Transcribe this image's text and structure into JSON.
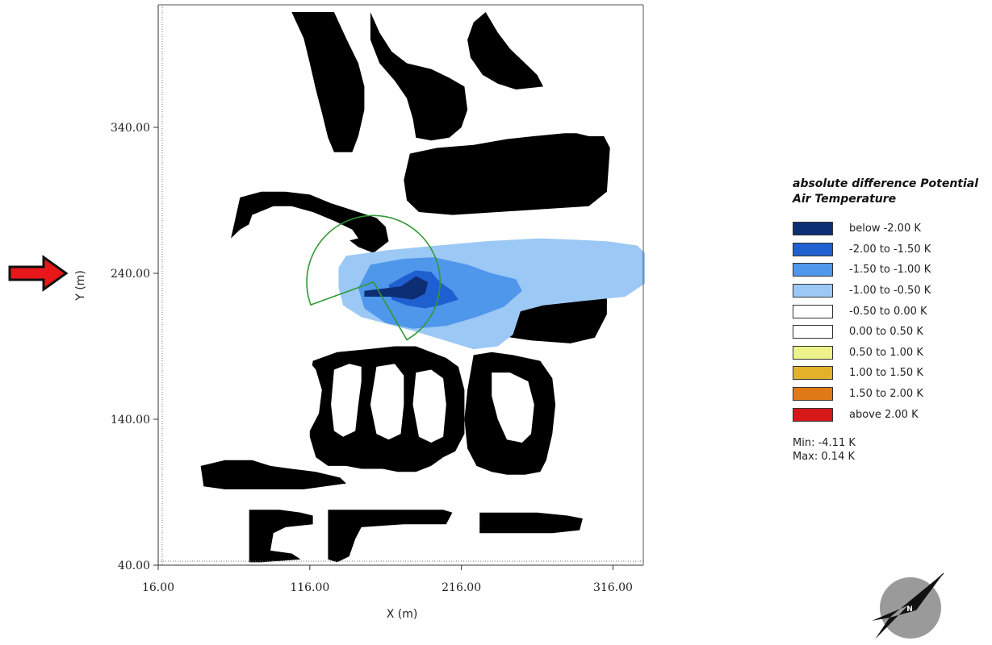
{
  "chart_data": {
    "type": "heatmap",
    "title": "",
    "xlabel": "X (m)",
    "ylabel": "Y (m)",
    "xlim": [
      16,
      336
    ],
    "ylim": [
      40,
      424
    ],
    "x_ticks": [
      "16.00",
      "116.00",
      "216.00",
      "316.00"
    ],
    "y_ticks": [
      "40.00",
      "140.00",
      "240.00",
      "340.00"
    ],
    "x_tick_values": [
      16,
      116,
      216,
      316
    ],
    "y_tick_values": [
      40,
      140,
      240,
      340
    ],
    "legend_title": "absolute difference Potential Air Temperature",
    "legend": [
      {
        "label": "below -2.00 K",
        "color": "#0d2e72"
      },
      {
        "label": "-2.00 to -1.50 K",
        "color": "#1f5fd0"
      },
      {
        "label": "-1.50 to -1.00 K",
        "color": "#4f97eb"
      },
      {
        "label": "-1.00 to -0.50 K",
        "color": "#9cc8f6"
      },
      {
        "label": "-0.50 to 0.00 K",
        "color": "#ffffff"
      },
      {
        "label": "0.00 to 0.50 K",
        "color": "#ffffff"
      },
      {
        "label": "0.50 to 1.00 K",
        "color": "#eef28a"
      },
      {
        "label": "1.00 to 1.50 K",
        "color": "#e3b22a"
      },
      {
        "label": "1.50 to 2.00 K",
        "color": "#e07a18"
      },
      {
        "label": "above 2.00 K",
        "color": "#d81818"
      }
    ],
    "min_label": "Min: -4.11 K",
    "max_label": "Max: 0.14 K",
    "min": -4.11,
    "max": 0.14,
    "cooling_zones": [
      {
        "class": "-1.00 to -0.50 K",
        "polygon": [
          [
            140,
            252
          ],
          [
            168,
            256
          ],
          [
            200,
            259
          ],
          [
            232,
            262
          ],
          [
            268,
            264
          ],
          [
            292,
            263
          ],
          [
            312,
            262
          ],
          [
            332,
            259
          ],
          [
            337,
            254
          ],
          [
            337,
            233
          ],
          [
            324,
            224
          ],
          [
            296,
            221
          ],
          [
            270,
            218
          ],
          [
            255,
            214
          ],
          [
            250,
            198
          ],
          [
            240,
            190
          ],
          [
            224,
            188
          ],
          [
            205,
            194
          ],
          [
            186,
            200
          ],
          [
            172,
            204
          ],
          [
            150,
            210
          ],
          [
            138,
            218
          ],
          [
            135,
            230
          ],
          [
            135,
            244
          ]
        ]
      },
      {
        "class": "-1.50 to -1.00 K",
        "polygon": [
          [
            156,
            246
          ],
          [
            178,
            250
          ],
          [
            198,
            251
          ],
          [
            220,
            246
          ],
          [
            236,
            240
          ],
          [
            252,
            236
          ],
          [
            256,
            228
          ],
          [
            244,
            217
          ],
          [
            226,
            210
          ],
          [
            206,
            204
          ],
          [
            184,
            202
          ],
          [
            166,
            206
          ],
          [
            152,
            216
          ],
          [
            148,
            230
          ]
        ]
      },
      {
        "class": "-2.00 to -1.50 K",
        "polygon": [
          [
            168,
            232
          ],
          [
            178,
            238
          ],
          [
            186,
            242
          ],
          [
            196,
            241
          ],
          [
            202,
            234
          ],
          [
            210,
            228
          ],
          [
            214,
            222
          ],
          [
            202,
            218
          ],
          [
            192,
            216
          ],
          [
            180,
            218
          ],
          [
            170,
            222
          ]
        ]
      },
      {
        "class": "below -2.00 K",
        "polygon": [
          [
            152,
            228
          ],
          [
            176,
            231
          ],
          [
            186,
            238
          ],
          [
            194,
            234
          ],
          [
            192,
            226
          ],
          [
            184,
            222
          ],
          [
            170,
            224
          ],
          [
            152,
            224
          ]
        ]
      }
    ],
    "buildings": [
      [
        [
          104,
          419
        ],
        [
          112,
          401
        ],
        [
          116,
          384
        ],
        [
          120,
          366
        ],
        [
          124,
          350
        ],
        [
          128,
          333
        ],
        [
          132,
          323
        ],
        [
          144,
          323
        ],
        [
          148,
          334
        ],
        [
          152,
          352
        ],
        [
          152,
          368
        ],
        [
          148,
          384
        ],
        [
          140,
          401
        ],
        [
          132,
          419
        ]
      ],
      [
        [
          156,
          419
        ],
        [
          162,
          405
        ],
        [
          170,
          392
        ],
        [
          180,
          384
        ],
        [
          196,
          380
        ],
        [
          208,
          374
        ],
        [
          218,
          368
        ],
        [
          220,
          352
        ],
        [
          216,
          340
        ],
        [
          208,
          333
        ],
        [
          196,
          331
        ],
        [
          186,
          333
        ],
        [
          184,
          346
        ],
        [
          180,
          360
        ],
        [
          172,
          372
        ],
        [
          162,
          384
        ],
        [
          156,
          400
        ]
      ],
      [
        [
          232,
          419
        ],
        [
          240,
          405
        ],
        [
          248,
          394
        ],
        [
          258,
          384
        ],
        [
          266,
          376
        ],
        [
          270,
          368
        ],
        [
          252,
          366
        ],
        [
          240,
          370
        ],
        [
          230,
          376
        ],
        [
          222,
          388
        ],
        [
          220,
          400
        ],
        [
          224,
          412
        ]
      ],
      [
        [
          182,
          322
        ],
        [
          200,
          326
        ],
        [
          224,
          328
        ],
        [
          246,
          332
        ],
        [
          264,
          334
        ],
        [
          284,
          336
        ],
        [
          292,
          336
        ],
        [
          300,
          334
        ],
        [
          310,
          334
        ],
        [
          314,
          326
        ],
        [
          312,
          296
        ],
        [
          300,
          286
        ],
        [
          270,
          284
        ],
        [
          240,
          282
        ],
        [
          210,
          280
        ],
        [
          188,
          282
        ],
        [
          180,
          290
        ],
        [
          178,
          304
        ]
      ],
      [
        [
          70,
          292
        ],
        [
          84,
          296
        ],
        [
          100,
          296
        ],
        [
          116,
          294
        ],
        [
          130,
          288
        ],
        [
          148,
          282
        ],
        [
          160,
          278
        ],
        [
          166,
          272
        ],
        [
          168,
          262
        ],
        [
          158,
          254
        ],
        [
          148,
          258
        ],
        [
          138,
          266
        ],
        [
          128,
          270
        ],
        [
          116,
          274
        ],
        [
          104,
          278
        ],
        [
          92,
          280
        ],
        [
          80,
          276
        ],
        [
          70,
          270
        ],
        [
          64,
          264
        ]
      ],
      [
        [
          222,
          238
        ],
        [
          236,
          242
        ],
        [
          256,
          244
        ],
        [
          278,
          244
        ],
        [
          298,
          244
        ],
        [
          306,
          242
        ],
        [
          312,
          236
        ],
        [
          312,
          212
        ],
        [
          304,
          196
        ],
        [
          288,
          192
        ],
        [
          262,
          194
        ],
        [
          236,
          198
        ],
        [
          226,
          210
        ],
        [
          220,
          222
        ]
      ],
      [
        [
          118,
          180
        ],
        [
          134,
          186
        ],
        [
          154,
          188
        ],
        [
          172,
          190
        ],
        [
          186,
          190
        ],
        [
          196,
          186
        ],
        [
          206,
          182
        ],
        [
          214,
          176
        ],
        [
          218,
          160
        ],
        [
          218,
          130
        ],
        [
          212,
          118
        ],
        [
          204,
          114
        ],
        [
          196,
          108
        ],
        [
          186,
          104
        ],
        [
          174,
          104
        ],
        [
          164,
          106
        ],
        [
          150,
          106
        ],
        [
          140,
          108
        ],
        [
          128,
          108
        ],
        [
          120,
          114
        ],
        [
          116,
          128
        ],
        [
          116,
          150
        ],
        [
          116,
          166
        ]
      ],
      [
        [
          224,
          184
        ],
        [
          236,
          186
        ],
        [
          250,
          184
        ],
        [
          268,
          180
        ],
        [
          276,
          168
        ],
        [
          278,
          150
        ],
        [
          276,
          130
        ],
        [
          272,
          112
        ],
        [
          268,
          104
        ],
        [
          258,
          102
        ],
        [
          246,
          102
        ],
        [
          236,
          104
        ],
        [
          226,
          108
        ],
        [
          220,
          120
        ],
        [
          218,
          140
        ],
        [
          220,
          160
        ]
      ],
      [
        [
          44,
          108
        ],
        [
          60,
          112
        ],
        [
          78,
          112
        ],
        [
          90,
          108
        ],
        [
          104,
          106
        ],
        [
          120,
          104
        ],
        [
          136,
          100
        ],
        [
          140,
          96
        ],
        [
          112,
          92
        ],
        [
          88,
          92
        ],
        [
          60,
          92
        ],
        [
          46,
          94
        ]
      ],
      [
        [
          76,
          78
        ],
        [
          96,
          78
        ],
        [
          110,
          76
        ],
        [
          118,
          74
        ],
        [
          118,
          68
        ],
        [
          100,
          66
        ],
        [
          92,
          62
        ],
        [
          90,
          50
        ],
        [
          104,
          48
        ],
        [
          110,
          44
        ],
        [
          84,
          42
        ],
        [
          76,
          42
        ]
      ],
      [
        [
          128,
          78
        ],
        [
          148,
          78
        ],
        [
          168,
          78
        ],
        [
          190,
          78
        ],
        [
          204,
          78
        ],
        [
          210,
          76
        ],
        [
          206,
          68
        ],
        [
          178,
          68
        ],
        [
          150,
          66
        ],
        [
          146,
          58
        ],
        [
          142,
          46
        ],
        [
          134,
          42
        ],
        [
          128,
          44
        ]
      ],
      [
        [
          228,
          76
        ],
        [
          248,
          76
        ],
        [
          266,
          76
        ],
        [
          286,
          74
        ],
        [
          296,
          72
        ],
        [
          294,
          64
        ],
        [
          276,
          62
        ],
        [
          256,
          62
        ],
        [
          240,
          62
        ],
        [
          228,
          62
        ]
      ]
    ],
    "building_holes": [
      [
        [
          78,
          280
        ],
        [
          92,
          286
        ],
        [
          104,
          286
        ],
        [
          118,
          282
        ],
        [
          132,
          276
        ],
        [
          144,
          270
        ],
        [
          148,
          264
        ],
        [
          140,
          262
        ],
        [
          130,
          262
        ],
        [
          118,
          266
        ],
        [
          104,
          268
        ],
        [
          92,
          270
        ],
        [
          84,
          268
        ],
        [
          76,
          264
        ],
        [
          74,
          268
        ]
      ],
      [
        [
          62,
          170
        ],
        [
          72,
          180
        ],
        [
          86,
          186
        ],
        [
          100,
          188
        ],
        [
          112,
          184
        ],
        [
          120,
          174
        ],
        [
          124,
          160
        ],
        [
          122,
          144
        ],
        [
          116,
          132
        ],
        [
          104,
          126
        ],
        [
          90,
          124
        ],
        [
          76,
          128
        ],
        [
          66,
          138
        ],
        [
          60,
          152
        ]
      ],
      [
        [
          96,
          232
        ],
        [
          106,
          244
        ],
        [
          118,
          250
        ],
        [
          128,
          252
        ],
        [
          132,
          248
        ],
        [
          126,
          236
        ],
        [
          122,
          222
        ],
        [
          118,
          212
        ],
        [
          108,
          210
        ],
        [
          98,
          214
        ],
        [
          92,
          222
        ]
      ],
      [
        [
          132,
          174
        ],
        [
          142,
          178
        ],
        [
          150,
          176
        ],
        [
          150,
          166
        ],
        [
          148,
          150
        ],
        [
          146,
          132
        ],
        [
          138,
          128
        ],
        [
          132,
          132
        ],
        [
          130,
          150
        ]
      ],
      [
        [
          160,
          176
        ],
        [
          172,
          178
        ],
        [
          178,
          170
        ],
        [
          178,
          150
        ],
        [
          176,
          130
        ],
        [
          168,
          126
        ],
        [
          160,
          130
        ],
        [
          156,
          150
        ]
      ],
      [
        [
          186,
          172
        ],
        [
          196,
          174
        ],
        [
          204,
          168
        ],
        [
          206,
          150
        ],
        [
          204,
          128
        ],
        [
          196,
          124
        ],
        [
          188,
          128
        ],
        [
          184,
          150
        ]
      ],
      [
        [
          236,
          172
        ],
        [
          248,
          172
        ],
        [
          260,
          166
        ],
        [
          264,
          150
        ],
        [
          262,
          130
        ],
        [
          256,
          124
        ],
        [
          246,
          126
        ],
        [
          240,
          140
        ],
        [
          236,
          156
        ]
      ]
    ],
    "annotation_sector": {
      "center": [
        158,
        234
      ],
      "radius": 44,
      "gap_deg": [
        200,
        300
      ]
    }
  }
}
